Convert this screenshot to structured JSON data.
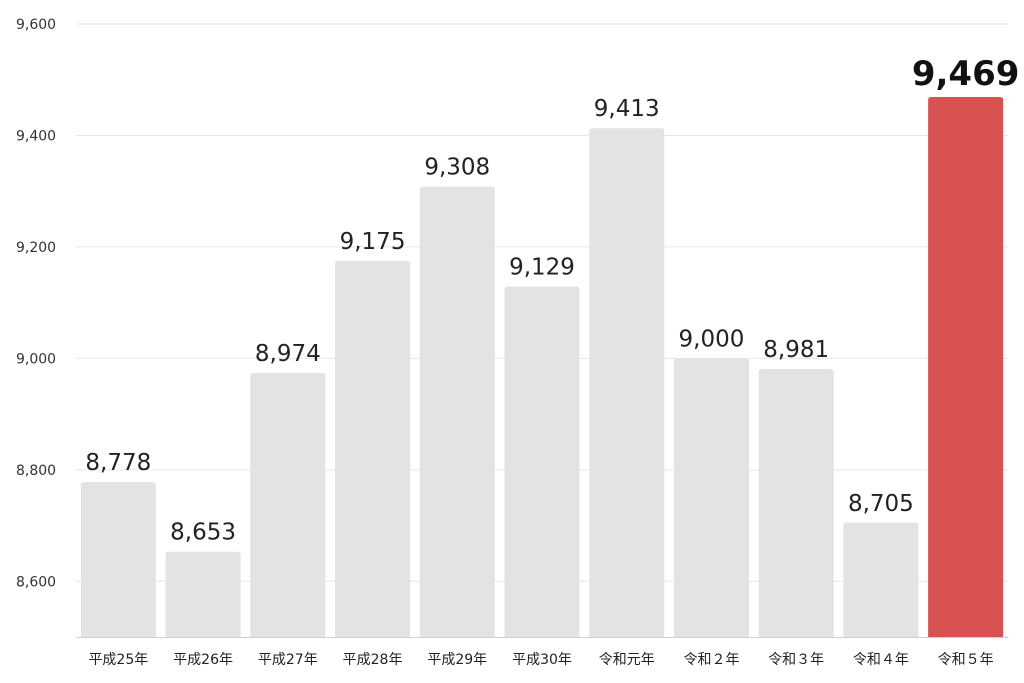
{
  "chart_data": {
    "type": "bar",
    "title": "",
    "xlabel": "",
    "ylabel": "",
    "categories": [
      "平成25年",
      "平成26年",
      "平成27年",
      "平成28年",
      "平成29年",
      "平成30年",
      "令和元年",
      "令和２年",
      "令和３年",
      "令和４年",
      "令和５年"
    ],
    "values": [
      8778,
      8653,
      8974,
      9175,
      9308,
      9129,
      9413,
      9000,
      8981,
      8705,
      9469
    ],
    "value_labels": [
      "8,778",
      "8,653",
      "8,974",
      "9,175",
      "9,308",
      "9,129",
      "9,413",
      "9,000",
      "8,981",
      "8,705",
      "9,469"
    ],
    "ylim": [
      8500,
      9600
    ],
    "yticks": [
      8600,
      8800,
      9000,
      9200,
      9400,
      9600
    ],
    "ytick_labels": [
      "8,600",
      "8,800",
      "9,000",
      "9,200",
      "9,400",
      "9,600"
    ],
    "grid": true,
    "highlight_index": 10,
    "colors": {
      "bar": "#e2e3e3",
      "highlight": "#d95252"
    }
  }
}
